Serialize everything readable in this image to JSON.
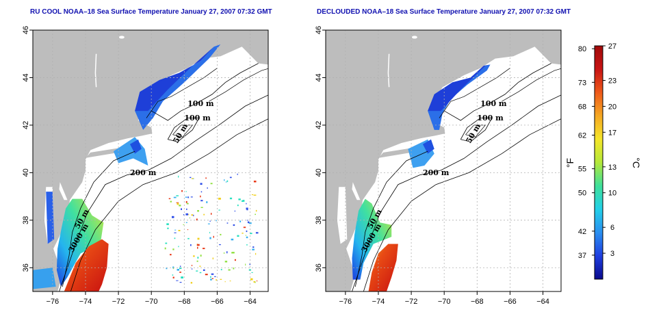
{
  "colors": {
    "land": "#bdbdbd",
    "frame": "#000000",
    "grid": "#b0b0b0",
    "title": "#1010b0"
  },
  "panels": [
    {
      "id": "left",
      "title": "RU COOL NOAA–18 Sea Surface Temperature January 27, 2007 07:32 GMT"
    },
    {
      "id": "right",
      "title": "DECLOUDED NOAA–18 Sea Surface Temperature January 27, 2007 07:32 GMT"
    }
  ],
  "map_axes": {
    "lon_range": [
      -77.2,
      -62.9
    ],
    "lat_range": [
      35.0,
      46.0
    ],
    "x_ticks": [
      -76,
      -74,
      -72,
      -70,
      -68,
      -66,
      -64
    ],
    "y_ticks": [
      36,
      38,
      40,
      42,
      44,
      46
    ]
  },
  "contour_labels": [
    "100 m",
    "100 m",
    "50 m",
    "200 m",
    "50 m",
    "3000 m"
  ],
  "colorbar": {
    "fahrenheit_label": "°F",
    "celsius_label": "°C",
    "fahrenheit_ticks": [
      80,
      73,
      68,
      62,
      55,
      50,
      42,
      37
    ],
    "celsius_ticks": [
      27,
      23,
      20,
      17,
      13,
      10,
      6,
      3
    ],
    "c_range": [
      0,
      27
    ],
    "gradient": [
      "#0a0a8c",
      "#1f3fe0",
      "#2a8ff0",
      "#23d0e8",
      "#3fe09a",
      "#b4e83a",
      "#f5e62a",
      "#f5a823",
      "#ee5a1a",
      "#c81414",
      "#a00a0a"
    ]
  }
}
